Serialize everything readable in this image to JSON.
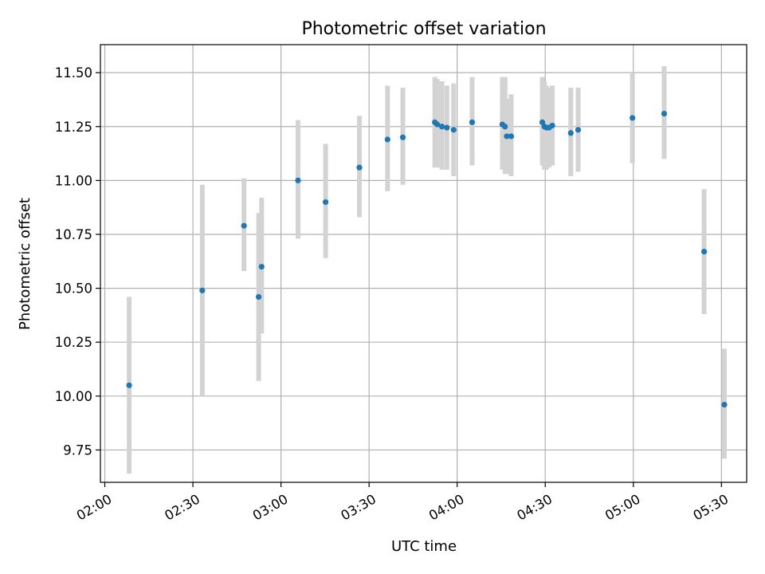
{
  "chart_data": {
    "type": "scatter",
    "title": "Photometric offset variation",
    "xlabel": "UTC time",
    "ylabel": "Photometric offset",
    "x_axis": {
      "unit": "minutes-of-day",
      "range": [
        118.5,
        338.6
      ],
      "ticks": [
        {
          "value": 120,
          "label": "02:00"
        },
        {
          "value": 150,
          "label": "02:30"
        },
        {
          "value": 180,
          "label": "03:00"
        },
        {
          "value": 210,
          "label": "03:30"
        },
        {
          "value": 240,
          "label": "04:00"
        },
        {
          "value": 270,
          "label": "04:30"
        },
        {
          "value": 300,
          "label": "05:00"
        },
        {
          "value": 330,
          "label": "05:30"
        }
      ]
    },
    "y_axis": {
      "range": [
        9.6,
        11.63
      ],
      "ticks": [
        {
          "value": 9.75,
          "label": "9.75"
        },
        {
          "value": 10.0,
          "label": "10.00"
        },
        {
          "value": 10.25,
          "label": "10.25"
        },
        {
          "value": 10.5,
          "label": "10.50"
        },
        {
          "value": 10.75,
          "label": "10.75"
        },
        {
          "value": 11.0,
          "label": "11.00"
        },
        {
          "value": 11.25,
          "label": "11.25"
        },
        {
          "value": 11.5,
          "label": "11.50"
        }
      ]
    },
    "grid": true,
    "colors": {
      "point": "#1f77b4",
      "errorbar": "#d3d3d3",
      "grid": "#b0b0b0"
    },
    "points": [
      {
        "t": "02:08",
        "x": 128.3,
        "y": 10.05,
        "lo": 9.64,
        "hi": 10.46
      },
      {
        "t": "02:33",
        "x": 153.2,
        "y": 10.49,
        "lo": 10.0,
        "hi": 10.98
      },
      {
        "t": "02:47",
        "x": 167.4,
        "y": 10.79,
        "lo": 10.58,
        "hi": 11.01
      },
      {
        "t": "02:52",
        "x": 172.4,
        "y": 10.46,
        "lo": 10.07,
        "hi": 10.85
      },
      {
        "t": "02:53",
        "x": 173.4,
        "y": 10.6,
        "lo": 10.29,
        "hi": 10.92
      },
      {
        "t": "03:05",
        "x": 185.8,
        "y": 11.0,
        "lo": 10.73,
        "hi": 11.28
      },
      {
        "t": "03:15",
        "x": 195.2,
        "y": 10.9,
        "lo": 10.64,
        "hi": 11.17
      },
      {
        "t": "03:26",
        "x": 206.7,
        "y": 11.06,
        "lo": 10.83,
        "hi": 11.3
      },
      {
        "t": "03:36",
        "x": 216.3,
        "y": 11.19,
        "lo": 10.95,
        "hi": 11.44
      },
      {
        "t": "03:41",
        "x": 221.5,
        "y": 11.2,
        "lo": 10.98,
        "hi": 11.43
      },
      {
        "t": "03:52",
        "x": 232.4,
        "y": 11.27,
        "lo": 11.06,
        "hi": 11.48
      },
      {
        "t": "03:53",
        "x": 233.2,
        "y": 11.26,
        "lo": 11.06,
        "hi": 11.47
      },
      {
        "t": "03:54",
        "x": 234.8,
        "y": 11.25,
        "lo": 11.05,
        "hi": 11.46
      },
      {
        "t": "03:56",
        "x": 236.5,
        "y": 11.245,
        "lo": 11.05,
        "hi": 11.44
      },
      {
        "t": "03:58",
        "x": 238.8,
        "y": 11.235,
        "lo": 11.02,
        "hi": 11.45
      },
      {
        "t": "04:05",
        "x": 245.1,
        "y": 11.27,
        "lo": 11.07,
        "hi": 11.48
      },
      {
        "t": "04:15",
        "x": 255.4,
        "y": 11.26,
        "lo": 11.05,
        "hi": 11.48
      },
      {
        "t": "04:16",
        "x": 256.3,
        "y": 11.25,
        "lo": 11.03,
        "hi": 11.48
      },
      {
        "t": "04:17",
        "x": 256.9,
        "y": 11.205,
        "lo": 11.03,
        "hi": 11.38
      },
      {
        "t": "04:18",
        "x": 258.4,
        "y": 11.205,
        "lo": 11.02,
        "hi": 11.4
      },
      {
        "t": "04:29",
        "x": 269.0,
        "y": 11.27,
        "lo": 11.07,
        "hi": 11.48
      },
      {
        "t": "04:30",
        "x": 269.7,
        "y": 11.25,
        "lo": 11.05,
        "hi": 11.46
      },
      {
        "t": "04:30",
        "x": 270.4,
        "y": 11.245,
        "lo": 11.05,
        "hi": 11.44
      },
      {
        "t": "04:31",
        "x": 271.3,
        "y": 11.245,
        "lo": 11.06,
        "hi": 11.43
      },
      {
        "t": "04:32",
        "x": 272.4,
        "y": 11.255,
        "lo": 11.07,
        "hi": 11.44
      },
      {
        "t": "04:38",
        "x": 278.7,
        "y": 11.22,
        "lo": 11.02,
        "hi": 11.43
      },
      {
        "t": "04:41",
        "x": 281.2,
        "y": 11.235,
        "lo": 11.04,
        "hi": 11.43
      },
      {
        "t": "04:59",
        "x": 299.7,
        "y": 11.29,
        "lo": 11.08,
        "hi": 11.5
      },
      {
        "t": "05:10",
        "x": 310.5,
        "y": 11.31,
        "lo": 11.1,
        "hi": 11.53
      },
      {
        "t": "05:24",
        "x": 324.1,
        "y": 10.67,
        "lo": 10.38,
        "hi": 10.96
      },
      {
        "t": "05:31",
        "x": 331.0,
        "y": 9.96,
        "lo": 9.71,
        "hi": 10.22
      }
    ]
  }
}
